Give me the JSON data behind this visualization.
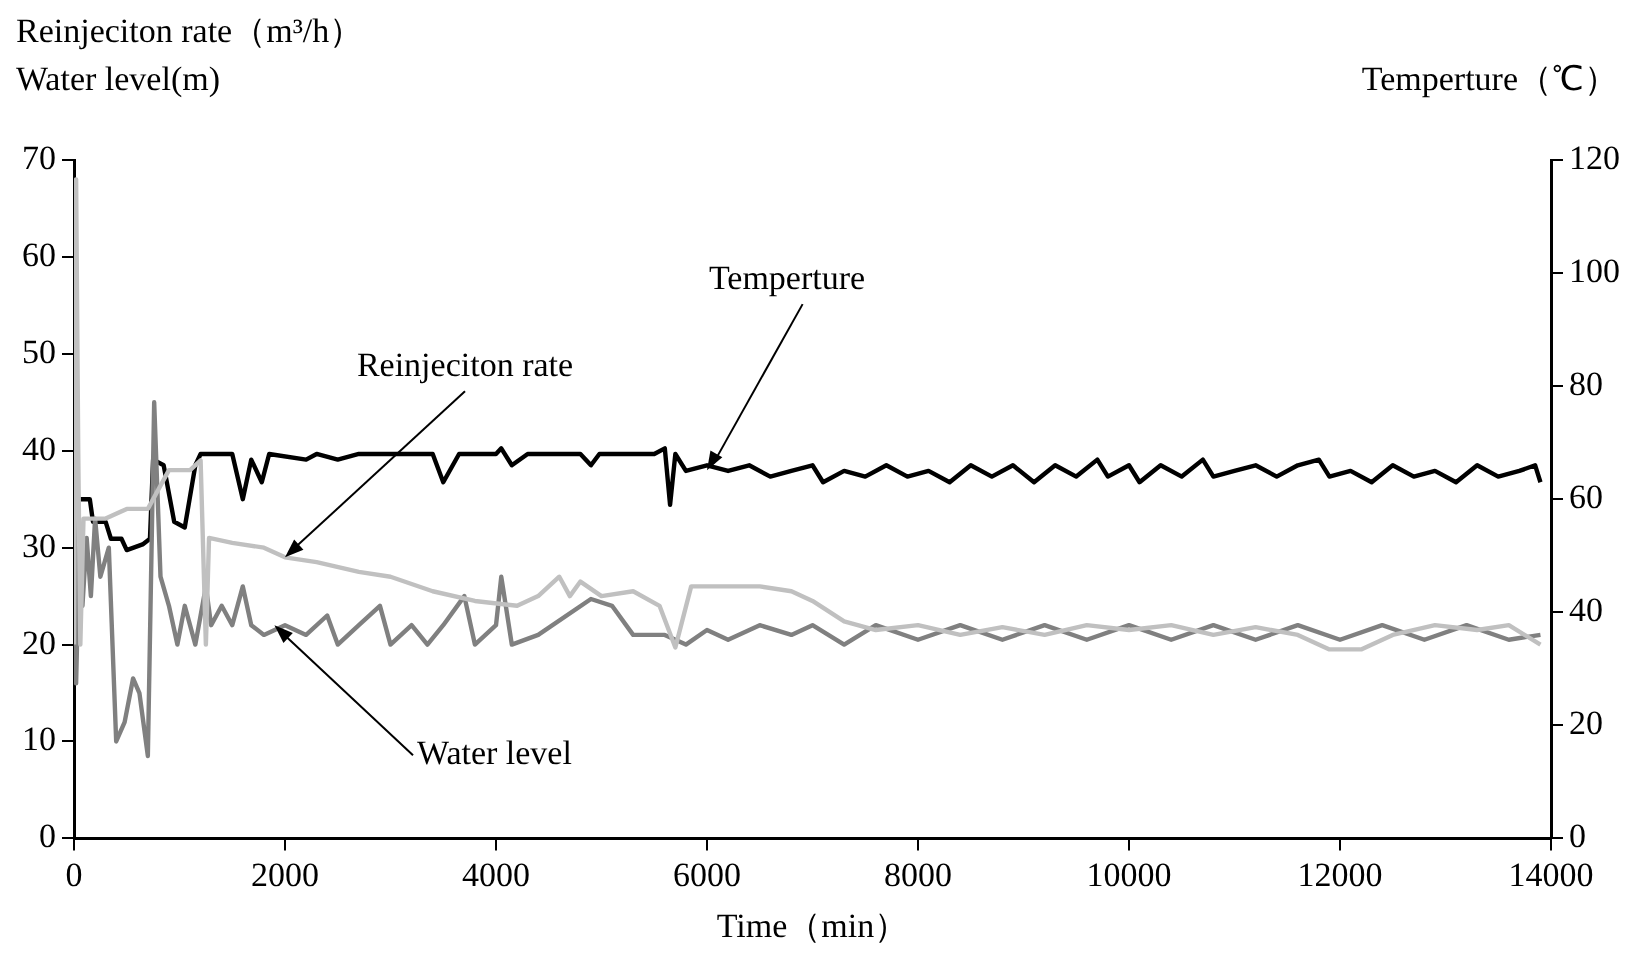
{
  "chart_data": {
    "type": "line",
    "xlabel": "Time（min）",
    "ylabel": "Reinjeciton rate（m³/h）\nWater level(m)",
    "y2label": "Temperture（℃）",
    "xlim": [
      0,
      14000
    ],
    "xticks": [
      0,
      2000,
      4000,
      6000,
      8000,
      10000,
      12000,
      14000
    ],
    "ylim": [
      0,
      70
    ],
    "yticks": [
      0,
      10,
      20,
      30,
      40,
      50,
      60,
      70
    ],
    "y2lim": [
      0,
      120
    ],
    "y2ticks": [
      0,
      20,
      40,
      60,
      80,
      100,
      120
    ],
    "grid": false,
    "legend": false,
    "marker": "none",
    "line_style": "solid",
    "series": [
      {
        "color": "#c0c0c0",
        "x": [
          0,
          20,
          40,
          60,
          90,
          300,
          500,
          700,
          800,
          900,
          1100,
          1200,
          1250,
          1280,
          1500,
          1800,
          2000,
          2300,
          2700,
          3000,
          3400,
          3800,
          4200,
          4400,
          4600,
          4700,
          4800,
          5000,
          5300,
          5550,
          5700,
          5850,
          6500,
          6800,
          7000,
          7300,
          7600,
          8000,
          8400,
          8800,
          9200,
          9600,
          10000,
          10400,
          10800,
          11200,
          11600,
          11900,
          12200,
          12500,
          12900,
          13300,
          13600,
          13900
        ],
        "values": [
          20,
          68,
          40,
          20,
          33,
          33,
          34,
          34,
          36,
          38,
          38,
          39,
          20,
          31,
          30.5,
          30,
          29,
          28.5,
          27.5,
          27,
          25.5,
          24.5,
          24,
          25,
          27,
          25,
          26.5,
          25,
          25.5,
          24,
          19.7,
          26,
          26,
          25.5,
          24.5,
          22.4,
          21.5,
          22,
          21,
          21.8,
          21,
          22,
          21.5,
          22,
          21,
          21.8,
          21,
          19.5,
          19.5,
          21,
          22,
          21.5,
          22,
          20
        ]
      },
      {
        "color": "#808080",
        "x": [
          0,
          20,
          50,
          80,
          120,
          160,
          200,
          250,
          330,
          400,
          480,
          560,
          620,
          700,
          760,
          820,
          900,
          980,
          1050,
          1150,
          1250,
          1300,
          1400,
          1500,
          1600,
          1680,
          1800,
          2000,
          2200,
          2400,
          2500,
          2700,
          2900,
          3000,
          3200,
          3350,
          3500,
          3700,
          3800,
          4000,
          4050,
          4150,
          4400,
          4900,
          5100,
          5300,
          5600,
          5800,
          6000,
          6200,
          6500,
          6800,
          7000,
          7300,
          7600,
          8000,
          8400,
          8800,
          9200,
          9600,
          10000,
          10400,
          10800,
          11200,
          11600,
          12000,
          12400,
          12800,
          13200,
          13600,
          13900
        ],
        "values": [
          40,
          16,
          30,
          24,
          31,
          25,
          33,
          27,
          30,
          10,
          12,
          16.5,
          15,
          8.5,
          45,
          27,
          24,
          20,
          24,
          20,
          26,
          22,
          24,
          22,
          26,
          22,
          21,
          22,
          21,
          23,
          20,
          22,
          24,
          20,
          22,
          20,
          22,
          25,
          20,
          22,
          27,
          20,
          21,
          24.7,
          24,
          21,
          21,
          20,
          21.5,
          20.5,
          22,
          21,
          22,
          20,
          22,
          20.5,
          22,
          20.5,
          22,
          20.5,
          22,
          20.5,
          22,
          20.5,
          22,
          20.5,
          22,
          20.5,
          22,
          20.5,
          21
        ]
      },
      {
        "color": "#000000",
        "axis": "y2",
        "x": [
          0,
          150,
          180,
          300,
          350,
          450,
          500,
          650,
          720,
          750,
          850,
          950,
          1050,
          1150,
          1200,
          1500,
          1600,
          1680,
          1780,
          1850,
          2200,
          2300,
          2500,
          2700,
          3000,
          3400,
          3500,
          3650,
          4000,
          4050,
          4150,
          4300,
          4800,
          4900,
          4980,
          5500,
          5600,
          5650,
          5700,
          5800,
          6000,
          6200,
          6400,
          6600,
          6800,
          7000,
          7100,
          7300,
          7500,
          7700,
          7900,
          8100,
          8300,
          8500,
          8700,
          8900,
          9100,
          9300,
          9500,
          9700,
          9800,
          10000,
          10100,
          10300,
          10500,
          10700,
          10800,
          11000,
          11200,
          11400,
          11600,
          11800,
          11900,
          12100,
          12300,
          12500,
          12700,
          12900,
          13100,
          13300,
          13500,
          13700,
          13850,
          13900
        ],
        "values": [
          60,
          60,
          56,
          56,
          53,
          53,
          51,
          52,
          53,
          67,
          66,
          56,
          55,
          66,
          68,
          68,
          60,
          67,
          63,
          68,
          67,
          68,
          67,
          68,
          68,
          68,
          63,
          68,
          68,
          69,
          66,
          68,
          68,
          66,
          68,
          68,
          69,
          59,
          68,
          65,
          66,
          65,
          66,
          64,
          65,
          66,
          63,
          65,
          64,
          66,
          64,
          65,
          63,
          66,
          64,
          66,
          63,
          66,
          64,
          67,
          64,
          66,
          63,
          66,
          64,
          67,
          64,
          65,
          66,
          64,
          66,
          67,
          64,
          65,
          63,
          66,
          64,
          65,
          63,
          66,
          64,
          65,
          66,
          63
        ]
      }
    ],
    "annotations": [
      {
        "text": "Reinjeciton rate",
        "x": 2000,
        "y": 29
      },
      {
        "text": "Temperture",
        "x": 6000,
        "y": 38
      },
      {
        "text": "Water level",
        "x": 1900,
        "y": 22
      }
    ]
  }
}
